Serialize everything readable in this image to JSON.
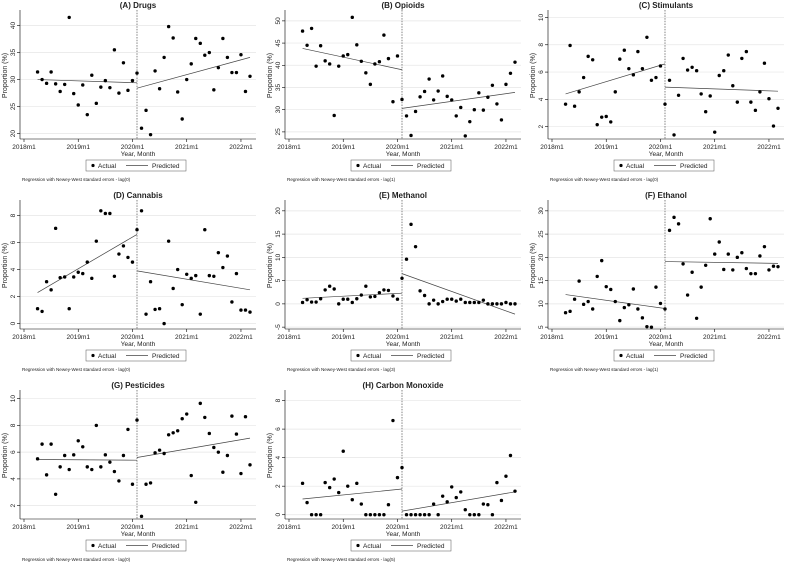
{
  "x": [
    "2018m4",
    "2018m5",
    "2018m6",
    "2018m7",
    "2018m8",
    "2018m9",
    "2018m10",
    "2018m11",
    "2018m12",
    "2019m1",
    "2019m2",
    "2019m3",
    "2019m4",
    "2019m5",
    "2019m6",
    "2019m7",
    "2019m8",
    "2019m9",
    "2019m10",
    "2019m11",
    "2019m12",
    "2020m1",
    "2020m2",
    "2020m3",
    "2020m4",
    "2020m5",
    "2020m6",
    "2020m7",
    "2020m8",
    "2020m9",
    "2020m10",
    "2020m11",
    "2020m12",
    "2021m1",
    "2021m2",
    "2021m3",
    "2021m4",
    "2021m5",
    "2021m6",
    "2021m7",
    "2021m8",
    "2021m9",
    "2021m10",
    "2021m11",
    "2021m12",
    "2022m1",
    "2022m2",
    "2022m3"
  ],
  "interruption": "2020m2",
  "chart_data": [
    {
      "type": "scatter",
      "title": "(A) Drugs",
      "ylabel": "Proportion (%)",
      "xlabel": "Year, Month",
      "xticks": [
        "2018m1",
        "2019m1",
        "2020m1",
        "2021m1",
        "2022m1"
      ],
      "yticks": [
        20,
        25,
        30,
        35,
        40
      ],
      "ylim": [
        19,
        42.5
      ],
      "legend": [
        "Actual",
        "Predicted"
      ],
      "note": "Regression with Newey-West standard errors - lag(0)",
      "actual": [
        31.4,
        30.0,
        29.3,
        31.4,
        29.2,
        27.8,
        29.1,
        41.5,
        27.4,
        25.3,
        29.0,
        23.5,
        30.8,
        25.6,
        28.6,
        29.8,
        28.5,
        35.5,
        27.5,
        33.1,
        28.0,
        29.8,
        31.2,
        21.0,
        24.3,
        19.8,
        31.6,
        28.3,
        34.1,
        39.8,
        37.7,
        27.7,
        22.7,
        30.0,
        32.9,
        37.6,
        36.7,
        34.5,
        35.0,
        28.1,
        32.2,
        37.6,
        34.1,
        31.3,
        31.3,
        34.6,
        27.8,
        30.6
      ],
      "predicted": {
        "pre": [
          30.0,
          29.4
        ],
        "post": [
          28.4,
          34.1
        ]
      }
    },
    {
      "type": "scatter",
      "title": "(B) Opioids",
      "ylabel": "Proportion (%)",
      "xlabel": "Year, Month",
      "xticks": [
        "2018m1",
        "2019m1",
        "2020m1",
        "2021m1",
        "2022m1"
      ],
      "yticks": [
        25,
        30,
        35,
        40,
        45,
        50
      ],
      "ylim": [
        23.4,
        52
      ],
      "legend": [
        "Actual",
        "Predicted"
      ],
      "note": "Regression with Newey-West standard errors - lag(1)",
      "actual": [
        47.7,
        44.5,
        48.3,
        39.8,
        44.4,
        41.0,
        40.3,
        28.7,
        39.8,
        42.1,
        42.4,
        50.8,
        44.6,
        40.9,
        38.3,
        35.7,
        40.3,
        40.8,
        46.8,
        41.5,
        31.8,
        42.1,
        32.3,
        28.6,
        24.2,
        29.6,
        32.9,
        34.1,
        36.9,
        32.2,
        34.2,
        37.6,
        33.0,
        32.2,
        28.6,
        30.5,
        24.1,
        27.3,
        30.0,
        33.8,
        29.9,
        32.8,
        35.5,
        31.3,
        27.7,
        35.7,
        38.2,
        40.7
      ],
      "predicted": {
        "pre": [
          43.8,
          39.0
        ],
        "post": [
          30.3,
          33.9
        ]
      }
    },
    {
      "type": "scatter",
      "title": "(C) Stimulants",
      "ylabel": "Proportion (%)",
      "xlabel": "Year, Month",
      "xticks": [
        "2018m1",
        "2019m1",
        "2020m1",
        "2021m1",
        "2022m1"
      ],
      "yticks": [
        2,
        4,
        6,
        8,
        10
      ],
      "ylim": [
        1.1,
        10.4
      ],
      "legend": [
        "Actual",
        "Predicted"
      ],
      "note": "Regression with Newey-West standard errors - lag(0)",
      "actual": [
        3.65,
        7.95,
        3.5,
        4.55,
        5.6,
        7.15,
        6.9,
        2.15,
        2.7,
        2.75,
        2.35,
        4.55,
        6.95,
        7.6,
        6.25,
        5.8,
        7.5,
        6.25,
        8.55,
        5.4,
        5.6,
        6.45,
        3.65,
        5.4,
        1.4,
        4.3,
        7.0,
        6.15,
        6.35,
        6.1,
        4.4,
        3.1,
        4.25,
        1.6,
        5.75,
        6.1,
        7.25,
        5.0,
        3.8,
        7.0,
        7.5,
        3.8,
        3.2,
        4.55,
        6.65,
        4.05,
        2.05,
        3.35
      ],
      "predicted": {
        "pre": [
          4.4,
          6.6
        ],
        "post": [
          4.9,
          4.6
        ]
      }
    },
    {
      "type": "scatter",
      "title": "(D) Cannabis",
      "ylabel": "Proportion (%)",
      "xlabel": "Year, Month",
      "xticks": [
        "2018m1",
        "2019m1",
        "2020m1",
        "2021m1",
        "2022m1"
      ],
      "yticks": [
        0,
        2,
        4,
        6,
        8
      ],
      "ylim": [
        -0.4,
        9
      ],
      "legend": [
        "Actual",
        "Predicted"
      ],
      "note": "Regression with Newey-West standard errors - lag(0)",
      "actual": [
        1.1,
        0.9,
        3.1,
        2.5,
        7.05,
        3.4,
        3.45,
        1.1,
        3.45,
        3.8,
        3.7,
        4.55,
        3.35,
        6.1,
        8.35,
        8.15,
        8.15,
        3.5,
        5.15,
        5.75,
        4.9,
        4.55,
        6.95,
        8.35,
        0.7,
        3.1,
        1.05,
        1.1,
        0.0,
        6.1,
        2.6,
        4.0,
        1.4,
        3.65,
        3.35,
        3.55,
        0.7,
        6.95,
        3.55,
        3.5,
        5.25,
        4.15,
        5.0,
        1.6,
        3.7,
        1.0,
        1.0,
        0.85
      ],
      "predicted": {
        "pre": [
          2.3,
          6.6
        ],
        "post": [
          3.9,
          2.5
        ]
      }
    },
    {
      "type": "scatter",
      "title": "(E) Methanol",
      "ylabel": "Proportion (%)",
      "xlabel": "Year, Month",
      "xticks": [
        "2018m1",
        "2019m1",
        "2020m1",
        "2021m1",
        "2022m1"
      ],
      "yticks": [
        -5,
        0,
        5,
        10,
        15,
        20
      ],
      "ylim": [
        -5.4,
        21.9
      ],
      "legend": [
        "Actual",
        "Predicted"
      ],
      "note": "Regression with Newey-West standard errors - lag(3)",
      "actual": [
        0.3,
        0.9,
        0.4,
        0.4,
        1.1,
        3.0,
        3.8,
        3.2,
        0.0,
        1.0,
        1.0,
        0.3,
        1.1,
        1.9,
        3.8,
        1.5,
        1.6,
        2.4,
        3.0,
        2.9,
        1.7,
        1.0,
        5.5,
        9.6,
        17.1,
        12.3,
        2.8,
        1.8,
        0.0,
        0.8,
        0.0,
        0.5,
        1.0,
        1.0,
        0.6,
        1.0,
        0.3,
        0.3,
        0.3,
        0.3,
        0.8,
        0.0,
        0.0,
        0.0,
        0.0,
        0.3,
        0.0,
        0.0
      ],
      "predicted": {
        "pre": [
          1.2,
          2.3
        ],
        "post": [
          6.5,
          -2.2
        ]
      }
    },
    {
      "type": "scatter",
      "title": "(F) Ethanol",
      "ylabel": "Proportion (%)",
      "xlabel": "Year, Month",
      "xticks": [
        "2018m1",
        "2019m1",
        "2020m1",
        "2021m1",
        "2022m1"
      ],
      "yticks": [
        5,
        10,
        15,
        20,
        25,
        30
      ],
      "ylim": [
        4.6,
        31.9
      ],
      "legend": [
        "Actual",
        "Predicted"
      ],
      "note": "Regression with Newey-West standard errors - lag(1)",
      "actual": [
        8.1,
        8.4,
        11.0,
        14.9,
        9.9,
        10.5,
        8.9,
        15.9,
        19.3,
        13.7,
        13.1,
        10.5,
        6.4,
        9.2,
        9.8,
        13.2,
        8.9,
        7.0,
        5.1,
        5.0,
        13.6,
        10.1,
        8.9,
        25.8,
        28.6,
        27.2,
        18.6,
        11.9,
        16.8,
        6.9,
        13.6,
        18.3,
        28.3,
        20.7,
        23.3,
        17.4,
        20.7,
        17.3,
        20.0,
        21.0,
        17.6,
        16.5,
        16.5,
        20.3,
        22.3,
        17.3,
        18.1,
        18.0
      ],
      "predicted": {
        "pre": [
          12.0,
          9.0
        ],
        "post": [
          19.1,
          18.7
        ]
      }
    },
    {
      "type": "scatter",
      "title": "(G) Pesticides",
      "ylabel": "Proportion (%)",
      "xlabel": "Year, Month",
      "xticks": [
        "2018m1",
        "2019m1",
        "2020m1",
        "2021m1",
        "2022m1"
      ],
      "yticks": [
        2,
        4,
        6,
        8,
        10
      ],
      "ylim": [
        1,
        10.5
      ],
      "legend": [
        "Actual",
        "Predicted"
      ],
      "note": "Regression with Newey-West standard errors - lag(0)",
      "actual": [
        5.5,
        6.6,
        4.3,
        6.6,
        2.85,
        4.9,
        5.75,
        4.7,
        5.8,
        6.85,
        6.4,
        4.9,
        4.7,
        8.0,
        4.9,
        5.8,
        5.25,
        4.55,
        3.85,
        5.75,
        7.7,
        3.6,
        8.4,
        1.2,
        3.6,
        3.7,
        5.95,
        6.15,
        5.9,
        7.3,
        7.45,
        7.6,
        8.5,
        8.85,
        4.25,
        2.25,
        9.65,
        8.6,
        7.4,
        6.35,
        6.0,
        4.5,
        5.75,
        8.7,
        7.35,
        4.4,
        8.65,
        5.05
      ],
      "predicted": {
        "pre": [
          5.45,
          5.4
        ],
        "post": [
          5.6,
          7.05
        ]
      }
    },
    {
      "type": "scatter",
      "title": "(H) Carbon Monoxide",
      "ylabel": "Proportion (%)",
      "xlabel": "Year, Month",
      "xticks": [
        "2018m1",
        "2019m1",
        "2020m1",
        "2021m1",
        "2022m1"
      ],
      "yticks": [
        0,
        2,
        4,
        6,
        8
      ],
      "ylim": [
        -0.3,
        8.6
      ],
      "legend": [
        "Actual",
        "Predicted"
      ],
      "note": "Regression with Newey-West standard errors - lag(5)",
      "actual": [
        2.2,
        0.85,
        0,
        0,
        0,
        2.25,
        1.9,
        2.5,
        1.55,
        4.45,
        2.0,
        1.05,
        2.2,
        0.75,
        0,
        0,
        0,
        0,
        0,
        0.7,
        6.6,
        2.6,
        3.3,
        0,
        0,
        0,
        0,
        0,
        0,
        0.75,
        0,
        1.3,
        0.9,
        1.95,
        1.2,
        1.6,
        0.35,
        0,
        0,
        0,
        0.75,
        0.7,
        0,
        2.25,
        1.0,
        2.7,
        4.15,
        1.65
      ],
      "predicted": {
        "pre": [
          1.1,
          1.8
        ],
        "post": [
          0.25,
          1.6
        ]
      }
    }
  ],
  "colors": {
    "marker": "#000000",
    "line": "#444444",
    "grid": "#e6e6e6",
    "interruption": "#333333"
  }
}
